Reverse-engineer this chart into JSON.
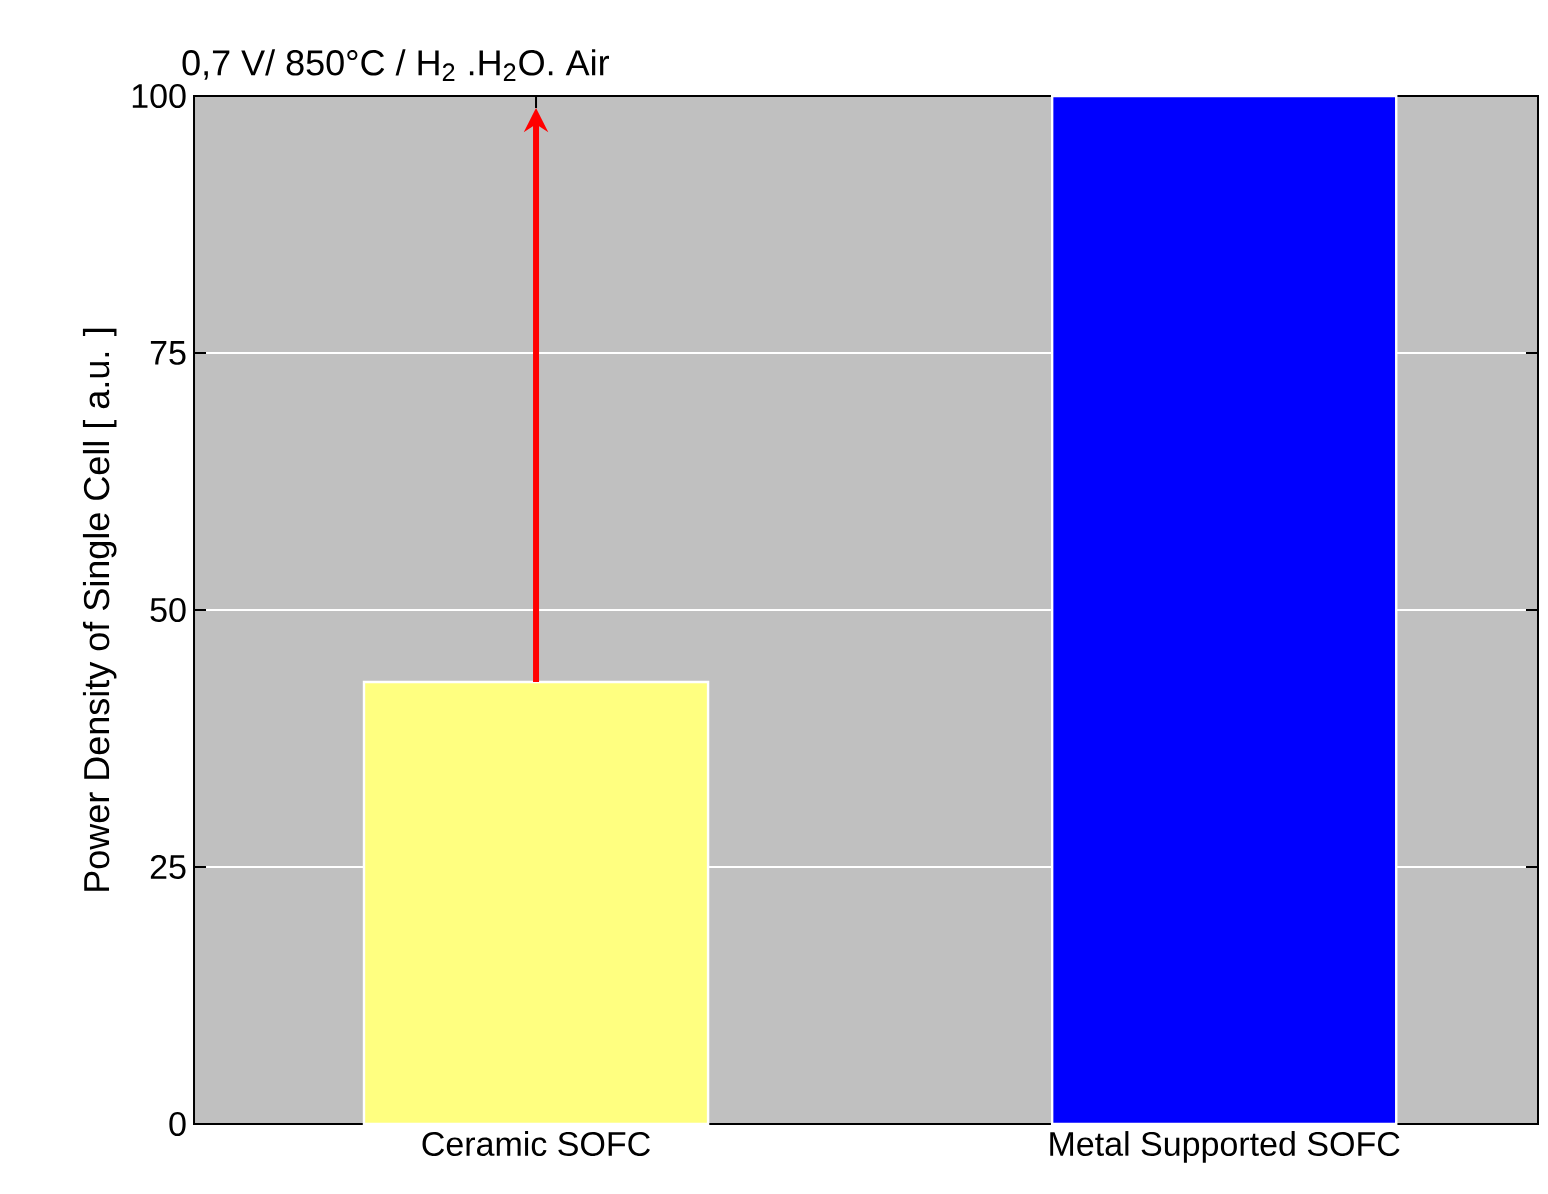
{
  "chart_data": {
    "type": "bar",
    "title": "0,7 V/ 850°C / H$_{2}$ .H$_{2}$O. Air",
    "ylabel": "Power Density of Single Cell [ a.u. ]",
    "categories": [
      "Ceramic SOFC",
      "Metal Supported SOFC"
    ],
    "values": [
      43,
      100
    ],
    "colors": [
      "#ffff80",
      "#0000ff"
    ],
    "ylim": [
      0,
      100
    ],
    "yticks": [
      0,
      25,
      50,
      75,
      100
    ],
    "grid": "y"
  }
}
